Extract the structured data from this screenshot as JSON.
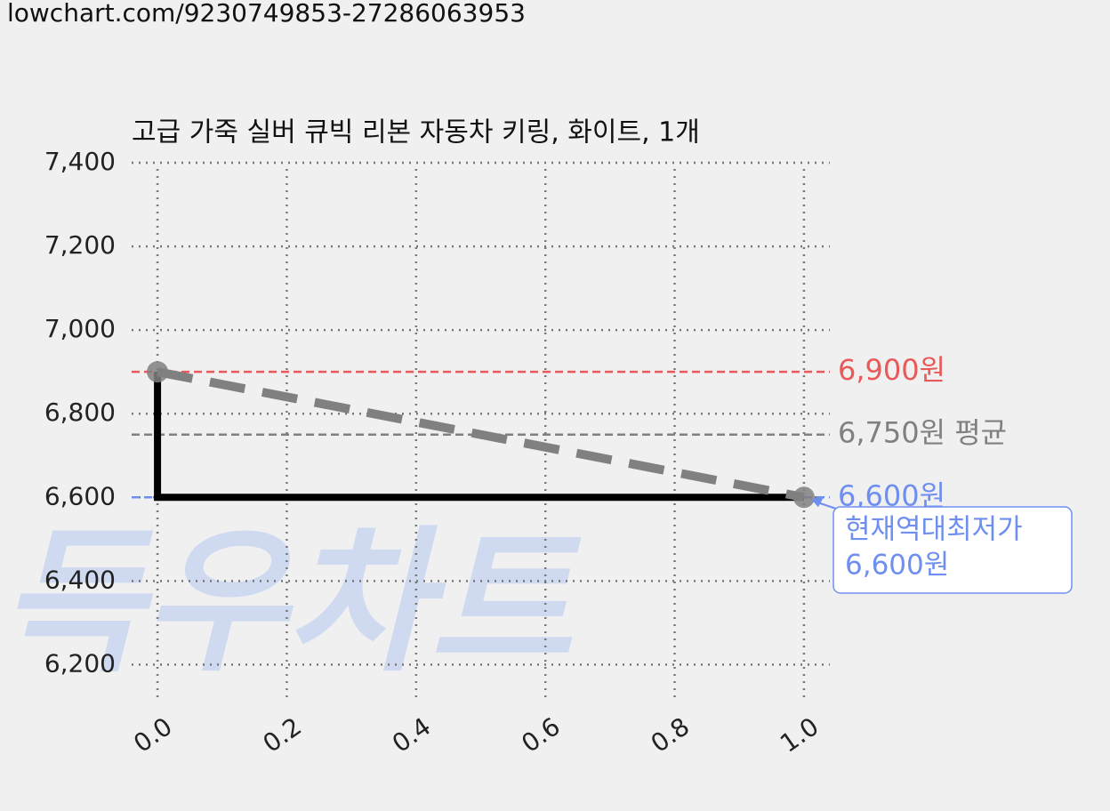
{
  "url": "lowchart.com/9230749853-27286063953",
  "chart_data": {
    "type": "line",
    "title": "고급 가죽 실버 큐빅 리본 자동차 키링, 화이트, 1개",
    "watermark": "득우차트",
    "xlim": [
      -0.04,
      1.04
    ],
    "ylim": [
      6120,
      7400
    ],
    "xticks": [
      {
        "value": 0,
        "label": "0.0"
      },
      {
        "value": 0.2,
        "label": "0.2"
      },
      {
        "value": 0.4,
        "label": "0.4"
      },
      {
        "value": 0.6,
        "label": "0.6"
      },
      {
        "value": 0.8,
        "label": "0.8"
      },
      {
        "value": 1,
        "label": "1.0"
      }
    ],
    "yticks": [
      {
        "value": 6200,
        "label": "6,200"
      },
      {
        "value": 6400,
        "label": "6,400"
      },
      {
        "value": 6600,
        "label": "6,600"
      },
      {
        "value": 6800,
        "label": "6,800"
      },
      {
        "value": 7000,
        "label": "7,000"
      },
      {
        "value": 7200,
        "label": "7,200"
      },
      {
        "value": 7400,
        "label": "7,400"
      }
    ],
    "grid": true,
    "series": [
      {
        "color": "#000000",
        "style": "solid",
        "x": [
          0,
          0,
          1
        ],
        "values": [
          6900,
          6600,
          6600
        ]
      },
      {
        "color": "#808080",
        "style": "dashed",
        "markers": true,
        "x": [
          0,
          1
        ],
        "values": [
          6900,
          6600
        ]
      }
    ],
    "hlines": [
      {
        "value": 6900,
        "label": "6,900원",
        "color": "#e85a5a"
      },
      {
        "value": 6750,
        "label": "6,750원 평균",
        "color": "#808080"
      },
      {
        "value": 6600,
        "label": "6,600원",
        "color": "#6f8ff0"
      }
    ],
    "annotation": {
      "lines": [
        "현재역대최저가",
        "6,600원"
      ],
      "x": 1,
      "y": 6600,
      "color": "#6f8ff0"
    }
  }
}
